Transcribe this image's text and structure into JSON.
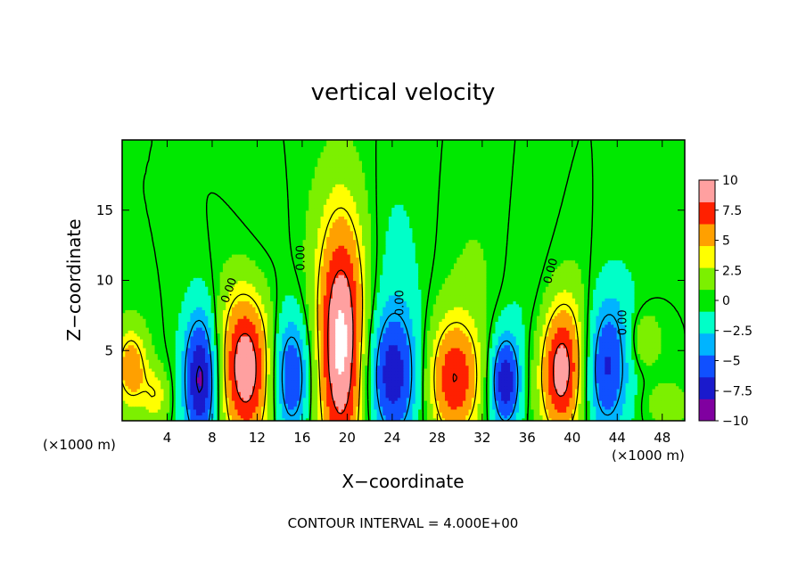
{
  "chart_data": {
    "type": "heatmap",
    "title": "vertical velocity",
    "xlabel": "X−coordinate",
    "ylabel": "Z−coordinate",
    "x_unit_left": "(×1000 m)",
    "x_unit_right": "(×1000 m)",
    "footer": "CONTOUR INTERVAL = 4.000E+00",
    "xlim": [
      0,
      50
    ],
    "ylim": [
      0,
      20
    ],
    "x_ticks": [
      "4",
      "8",
      "12",
      "16",
      "20",
      "24",
      "28",
      "32",
      "36",
      "40",
      "44",
      "48"
    ],
    "y_ticks": [
      "5",
      "10",
      "15"
    ],
    "colorbar": {
      "min": -10,
      "max": 10,
      "ticks": [
        "10",
        "7.5",
        "5",
        "2.5",
        "0",
        "−2.5",
        "−5",
        "−7.5",
        "−10"
      ],
      "colors": [
        "#8000a0",
        "#1a1acc",
        "#1050ff",
        "#00b4ff",
        "#00ffc8",
        "#00e800",
        "#7cf000",
        "#ffff00",
        "#ffa000",
        "#ff2000",
        "#ffa0a0"
      ]
    },
    "contour_labels": [
      {
        "text": "0.00",
        "x": 9.8,
        "y": 9.2,
        "rot": -70
      },
      {
        "text": "0.00",
        "x": 16.2,
        "y": 11.6,
        "rot": -90
      },
      {
        "text": "0.00",
        "x": 25.0,
        "y": 8.4,
        "rot": -90
      },
      {
        "text": "0.00",
        "x": 38.4,
        "y": 10.6,
        "rot": -75
      },
      {
        "text": "0.00",
        "x": 44.8,
        "y": 7.0,
        "rot": -90
      }
    ],
    "cells": [
      {
        "x": 0.8,
        "z": 3.8,
        "w": 1.5,
        "h": 3.0,
        "v": 6.0
      },
      {
        "x": 3.0,
        "z": 1.8,
        "w": 1.2,
        "h": 2.0,
        "v": 3.5
      },
      {
        "x": 7.0,
        "z": 3.0,
        "w": 1.6,
        "h": 5.0,
        "v": -9.0
      },
      {
        "x": 11.0,
        "z": 4.0,
        "w": 2.5,
        "h": 6.0,
        "v": 10.0
      },
      {
        "x": 15.0,
        "z": 3.2,
        "w": 1.8,
        "h": 4.5,
        "v": -7.0
      },
      {
        "x": 19.5,
        "z": 5.0,
        "w": 2.3,
        "h": 9.0,
        "v": 10.5
      },
      {
        "x": 24.0,
        "z": 3.2,
        "w": 2.5,
        "h": 5.0,
        "v": -7.5
      },
      {
        "x": 29.5,
        "z": 3.0,
        "w": 2.5,
        "h": 4.5,
        "v": 8.0
      },
      {
        "x": 34.0,
        "z": 2.8,
        "w": 1.4,
        "h": 3.5,
        "v": -8.0
      },
      {
        "x": 39.0,
        "z": 3.5,
        "w": 2.0,
        "h": 5.0,
        "v": 9.0
      },
      {
        "x": 43.0,
        "z": 3.8,
        "w": 2.0,
        "h": 5.0,
        "v": -6.5
      },
      {
        "x": 46.5,
        "z": 5.8,
        "w": 1.4,
        "h": 2.0,
        "v": 3.0
      },
      {
        "x": 48.5,
        "z": 1.2,
        "w": 1.8,
        "h": 1.5,
        "v": 2.5
      },
      {
        "x": 12.0,
        "z": 10.0,
        "w": 2.5,
        "h": 6.0,
        "v": -1.2
      },
      {
        "x": 19.5,
        "z": 13.0,
        "w": 3.0,
        "h": 7.0,
        "v": 1.3
      },
      {
        "x": 24.0,
        "z": 12.0,
        "w": 3.0,
        "h": 7.0,
        "v": -1.3
      },
      {
        "x": 31.5,
        "z": 11.0,
        "w": 3.0,
        "h": 6.0,
        "v": 1.0
      },
      {
        "x": 36.0,
        "z": 9.0,
        "w": 2.5,
        "h": 6.0,
        "v": -1.0
      },
      {
        "x": 40.5,
        "z": 7.0,
        "w": 2.0,
        "h": 5.0,
        "v": 1.2
      },
      {
        "x": 44.5,
        "z": 8.0,
        "w": 2.5,
        "h": 5.0,
        "v": -0.8
      }
    ]
  }
}
